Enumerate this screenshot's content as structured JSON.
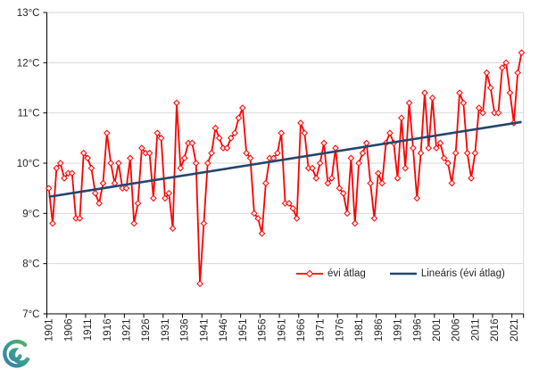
{
  "chart_data": {
    "type": "line",
    "title": "",
    "xlabel": "",
    "ylabel": "",
    "ylim": [
      7,
      13
    ],
    "y_tick_labels": [
      "7°C",
      "8°C",
      "9°C",
      "10°C",
      "11°C",
      "12°C",
      "13°C"
    ],
    "grid": true,
    "legend_position": "bottom-inside",
    "x_start_year": 1901,
    "x_end_year": 2023,
    "x_tick_years": [
      1901,
      1906,
      1911,
      1916,
      1921,
      1926,
      1931,
      1936,
      1941,
      1946,
      1951,
      1956,
      1961,
      1966,
      1971,
      1976,
      1981,
      1986,
      1991,
      1996,
      2001,
      2006,
      2011,
      2016,
      2021
    ],
    "series": [
      {
        "name": "évi átlag",
        "color": "#fe0000",
        "marker": "diamond",
        "marker_fill": "#fdecec",
        "values": [
          9.5,
          8.8,
          9.9,
          10.0,
          9.7,
          9.8,
          9.8,
          8.9,
          8.9,
          10.2,
          10.1,
          9.9,
          9.4,
          9.2,
          9.6,
          10.6,
          10.0,
          9.6,
          10.0,
          9.5,
          9.5,
          10.1,
          8.8,
          9.2,
          10.3,
          10.2,
          10.2,
          9.3,
          10.6,
          10.5,
          9.3,
          9.4,
          8.7,
          11.2,
          9.9,
          10.1,
          10.4,
          10.4,
          10.0,
          7.6,
          8.8,
          10.0,
          10.2,
          10.7,
          10.5,
          10.3,
          10.3,
          10.5,
          10.6,
          10.9,
          11.1,
          10.2,
          10.1,
          9.0,
          8.9,
          8.6,
          9.6,
          10.1,
          10.1,
          10.2,
          10.6,
          9.2,
          9.2,
          9.1,
          8.9,
          10.8,
          10.6,
          9.9,
          9.9,
          9.7,
          10.0,
          10.4,
          9.6,
          9.7,
          10.3,
          9.5,
          9.4,
          9.0,
          10.1,
          8.8,
          10.0,
          10.2,
          10.4,
          9.6,
          8.9,
          9.8,
          9.6,
          10.4,
          10.6,
          10.4,
          9.7,
          10.9,
          9.9,
          11.2,
          10.3,
          9.3,
          10.2,
          11.4,
          10.3,
          11.3,
          10.3,
          10.4,
          10.1,
          10.0,
          9.6,
          10.2,
          11.4,
          11.2,
          10.2,
          9.7,
          10.2,
          11.1,
          11.0,
          11.8,
          11.5,
          11.0,
          11.0,
          11.9,
          12.0,
          11.4,
          10.8,
          11.8,
          12.2
        ]
      }
    ],
    "trendline": {
      "name": "Lineáris (évi átlag)",
      "color": "#25456b",
      "start_value": 9.33,
      "end_value": 10.82
    },
    "colors": {
      "gridline": "#d9d9d9",
      "axis": "#000000",
      "label_text": "#262626",
      "background": "#ffffff"
    }
  },
  "legend": {
    "items": [
      {
        "label": "évi átlag",
        "swatch": "red-line-with-diamond"
      },
      {
        "label": "Lineáris (évi átlag)",
        "swatch": "navy-line"
      }
    ]
  },
  "logo": {
    "name": "met-swirl-logo",
    "colors": [
      "#2e7fae",
      "#5cb25c"
    ]
  }
}
